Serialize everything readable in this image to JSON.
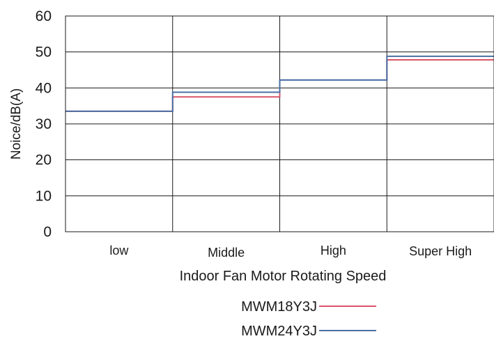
{
  "chart_data": {
    "type": "line",
    "step": true,
    "categories": [
      "low",
      "Middle",
      "High",
      "Super High"
    ],
    "xlabel": "Indoor Fan Motor Rotating Speed",
    "ylabel": "Noice/dB(A)",
    "ylim": [
      0,
      60
    ],
    "yticks": [
      0,
      10,
      20,
      30,
      40,
      50,
      60
    ],
    "grid": true,
    "legend_position": "bottom",
    "series": [
      {
        "name": "MWM18Y3J",
        "color": "#d9546b",
        "values": [
          33.5,
          37.5,
          42.2,
          47.8
        ]
      },
      {
        "name": "MWM24Y3J",
        "color": "#4a6fa5",
        "values": [
          33.5,
          38.8,
          42.2,
          48.8
        ]
      }
    ]
  }
}
